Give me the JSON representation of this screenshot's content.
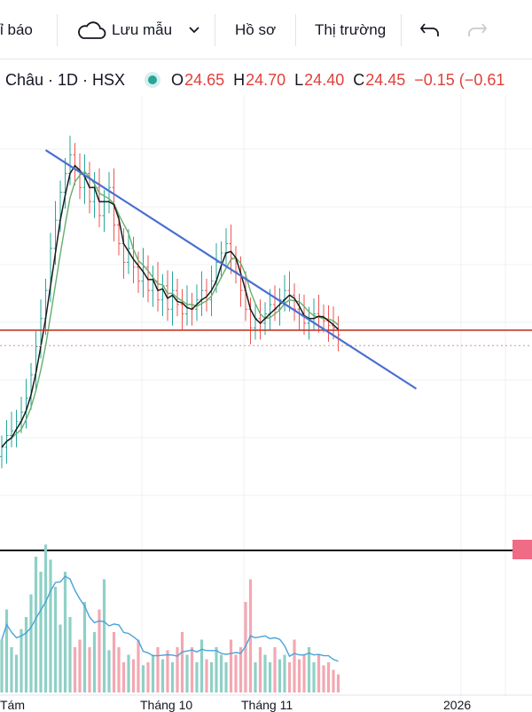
{
  "toolbar": {
    "indicators_label": "ỉ báo",
    "save_label": "Lưu mẫu",
    "profile_label": "Hồ sơ",
    "market_label": "Thị trường"
  },
  "legend": {
    "symbol": "Châu · 1D · HSX",
    "o_label": "O",
    "o_value": "24.65",
    "h_label": "H",
    "h_value": "24.70",
    "l_label": "L",
    "l_value": "24.40",
    "c_label": "C",
    "c_value": "24.45",
    "change": "−0.15 (−0.61"
  },
  "x_axis": {
    "label_1": "Tám",
    "label_2": "Tháng 10",
    "label_3": "Tháng 11",
    "label_4": "2026"
  },
  "colors": {
    "up": "#26a69a",
    "down": "#ef5350",
    "trendline": "#4a6fd1",
    "support": "#c0392b",
    "ma_fast": "#1a1a1a",
    "ma_slow": "#62b06b",
    "volume_ma": "#4aa3d8"
  },
  "chart_data": {
    "type": "candlestick",
    "close": [
      22.05,
      22.3,
      22.4,
      22.6,
      22.8,
      23.1,
      23.6,
      24.2,
      24.8,
      25.4,
      26.3,
      26.9,
      27.5,
      27.9,
      28.3,
      28.0,
      27.6,
      27.9,
      27.3,
      27.6,
      27.0,
      27.3,
      27.6,
      26.8,
      26.4,
      26.0,
      26.3,
      25.9,
      25.6,
      25.9,
      25.4,
      25.6,
      25.2,
      25.5,
      25.0,
      25.4,
      25.1,
      24.9,
      25.1,
      25.0,
      25.2,
      25.4,
      25.2,
      25.6,
      26.0,
      26.2,
      26.4,
      26.1,
      25.8,
      25.4,
      25.0,
      24.6,
      24.8,
      24.7,
      24.9,
      25.1,
      25.0,
      25.2,
      25.4,
      25.3,
      25.0,
      24.9,
      24.7,
      24.8,
      24.9,
      24.85,
      24.75,
      24.65,
      24.6,
      24.45
    ],
    "volume": [
      0.35,
      0.55,
      0.3,
      0.25,
      0.42,
      0.5,
      0.65,
      0.9,
      0.8,
      0.98,
      0.88,
      0.7,
      0.45,
      0.8,
      0.5,
      0.3,
      0.35,
      0.6,
      0.3,
      0.4,
      0.55,
      0.75,
      0.28,
      0.4,
      0.3,
      0.2,
      0.25,
      0.22,
      0.35,
      0.18,
      0.2,
      0.25,
      0.3,
      0.22,
      0.28,
      0.2,
      0.3,
      0.4,
      0.25,
      0.3,
      0.2,
      0.35,
      0.22,
      0.2,
      0.3,
      0.25,
      0.2,
      0.35,
      0.25,
      0.3,
      0.6,
      0.75,
      0.2,
      0.3,
      0.25,
      0.2,
      0.3,
      0.22,
      0.25,
      0.2,
      0.35,
      0.22,
      0.25,
      0.3,
      0.2,
      0.25,
      0.18,
      0.2,
      0.15,
      0.12
    ],
    "trendline": [
      [
        9,
        28.4
      ],
      [
        85,
        23.3
      ]
    ],
    "support_level": 24.55
  }
}
